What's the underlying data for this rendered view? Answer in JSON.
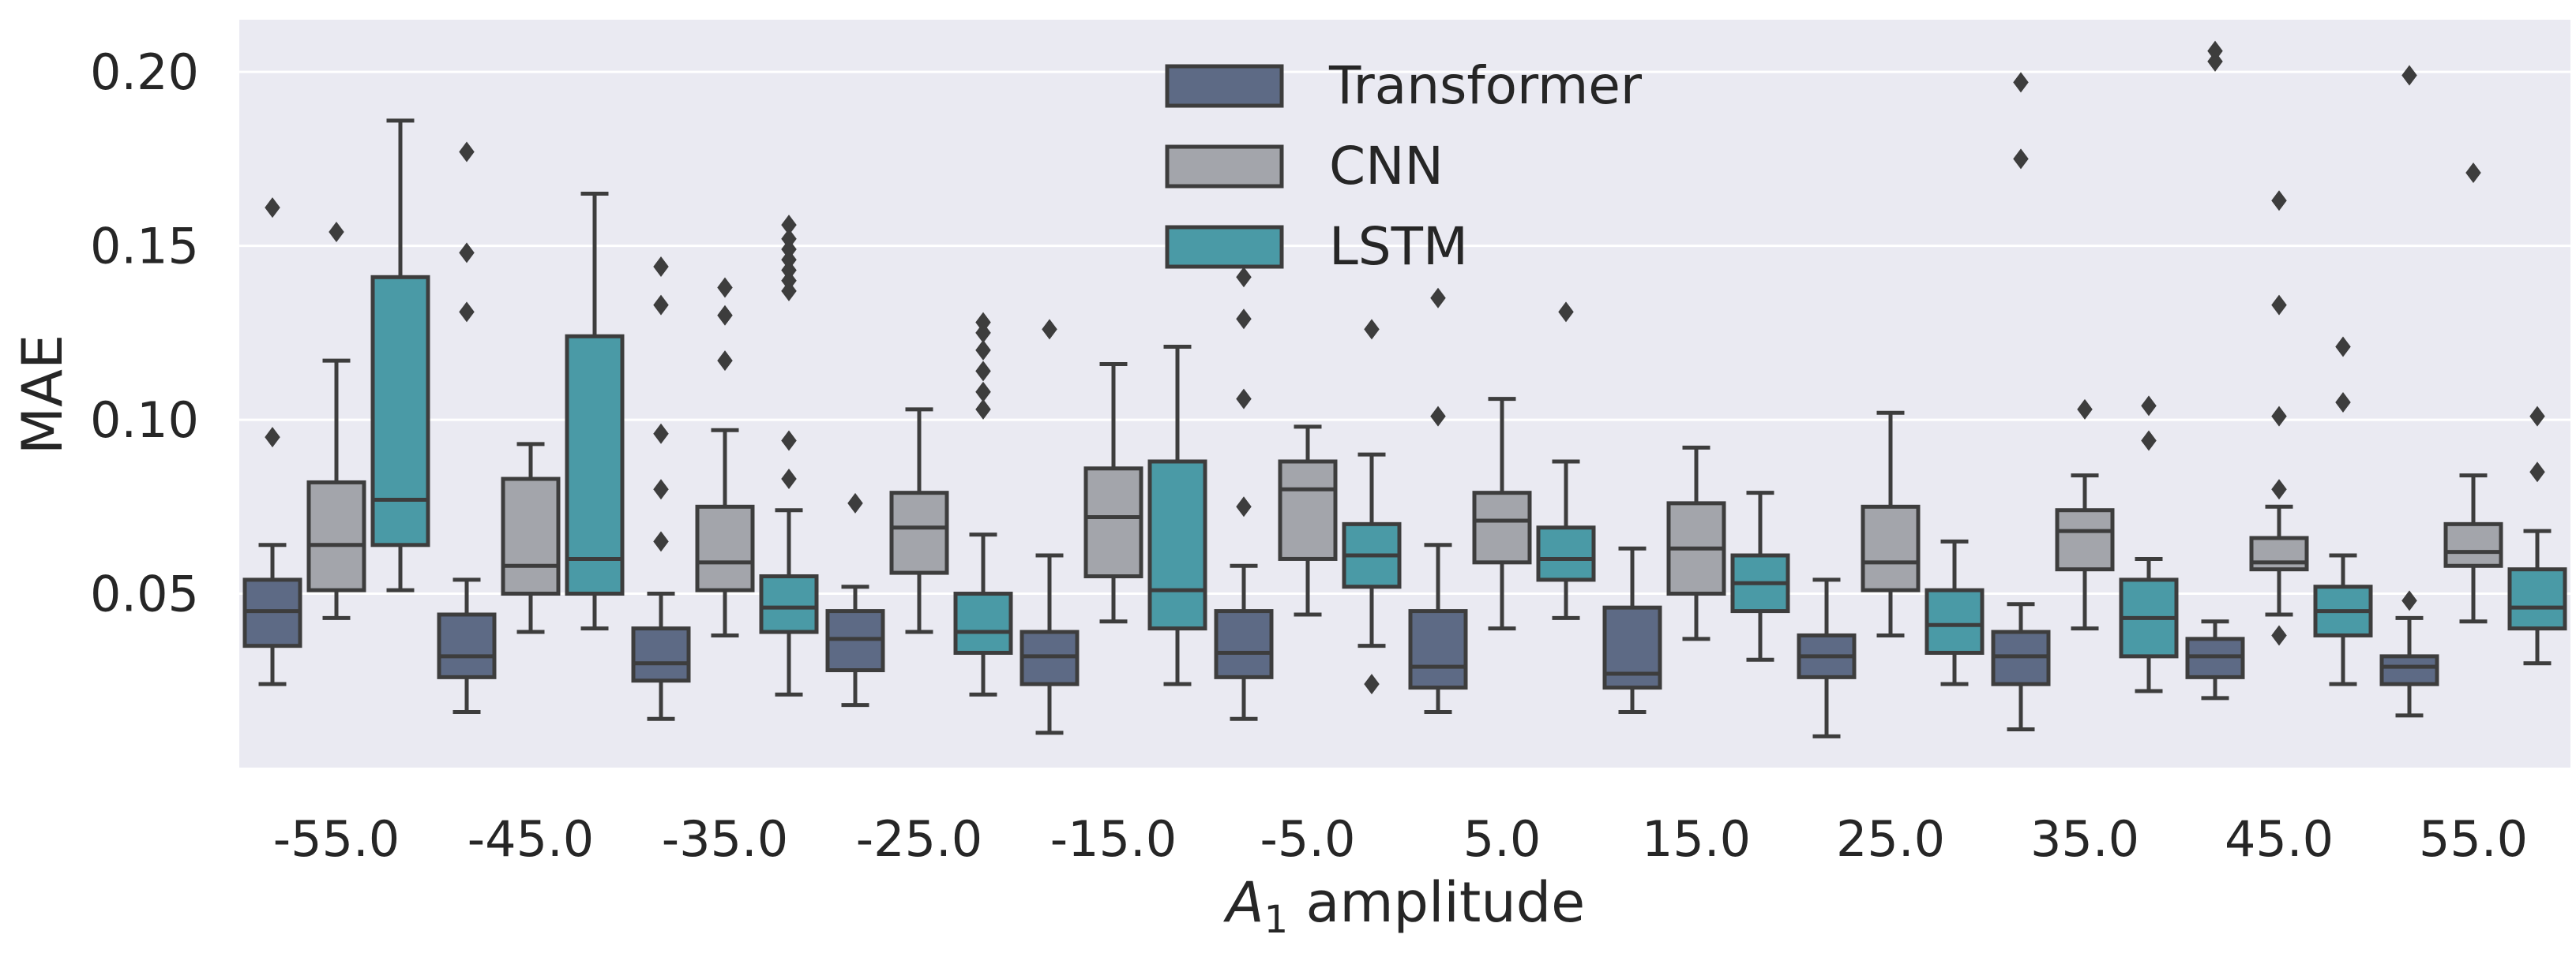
{
  "chart_data": {
    "type": "boxplot",
    "title": "",
    "xlabel": "$A_1$ amplitude",
    "xlabel_parts": {
      "symbol": "A",
      "subscript": "1",
      "rest": " amplitude"
    },
    "ylabel": "MAE",
    "ylim": [
      0.0,
      0.215
    ],
    "yticks": [
      0.05,
      0.1,
      0.15,
      0.2
    ],
    "ytick_labels": [
      "0.05",
      "0.10",
      "0.15",
      "0.20"
    ],
    "grid": true,
    "legend_position": "top-center",
    "categories": [
      "-55.0",
      "-45.0",
      "-35.0",
      "-25.0",
      "-15.0",
      "-5.0",
      "5.0",
      "15.0",
      "25.0",
      "35.0",
      "45.0",
      "55.0"
    ],
    "series": [
      {
        "name": "Transformer",
        "color": "#5d6a85",
        "boxes": [
          {
            "whislo": 0.024,
            "q1": 0.035,
            "med": 0.045,
            "q3": 0.054,
            "whishi": 0.064,
            "fliers": [
              0.095,
              0.161
            ]
          },
          {
            "whislo": 0.016,
            "q1": 0.026,
            "med": 0.032,
            "q3": 0.044,
            "whishi": 0.054,
            "fliers": [
              0.131,
              0.148,
              0.177
            ]
          },
          {
            "whislo": 0.014,
            "q1": 0.025,
            "med": 0.03,
            "q3": 0.04,
            "whishi": 0.05,
            "fliers": [
              0.065,
              0.08,
              0.096,
              0.133,
              0.144
            ]
          },
          {
            "whislo": 0.018,
            "q1": 0.028,
            "med": 0.037,
            "q3": 0.045,
            "whishi": 0.052,
            "fliers": [
              0.076
            ]
          },
          {
            "whislo": 0.01,
            "q1": 0.024,
            "med": 0.032,
            "q3": 0.039,
            "whishi": 0.061,
            "fliers": [
              0.126
            ]
          },
          {
            "whislo": 0.014,
            "q1": 0.026,
            "med": 0.033,
            "q3": 0.045,
            "whishi": 0.058,
            "fliers": [
              0.075,
              0.106,
              0.129,
              0.141
            ]
          },
          {
            "whislo": 0.016,
            "q1": 0.023,
            "med": 0.029,
            "q3": 0.045,
            "whishi": 0.064,
            "fliers": [
              0.101,
              0.135
            ]
          },
          {
            "whislo": 0.016,
            "q1": 0.023,
            "med": 0.027,
            "q3": 0.046,
            "whishi": 0.063,
            "fliers": []
          },
          {
            "whislo": 0.009,
            "q1": 0.026,
            "med": 0.032,
            "q3": 0.038,
            "whishi": 0.054,
            "fliers": []
          },
          {
            "whislo": 0.011,
            "q1": 0.024,
            "med": 0.032,
            "q3": 0.039,
            "whishi": 0.047,
            "fliers": [
              0.175,
              0.197
            ]
          },
          {
            "whislo": 0.02,
            "q1": 0.026,
            "med": 0.032,
            "q3": 0.037,
            "whishi": 0.042,
            "fliers": [
              0.203,
              0.206
            ]
          },
          {
            "whislo": 0.015,
            "q1": 0.024,
            "med": 0.029,
            "q3": 0.032,
            "whishi": 0.043,
            "fliers": [
              0.048,
              0.199
            ]
          }
        ]
      },
      {
        "name": "CNN",
        "color": "#a3a5ab",
        "boxes": [
          {
            "whislo": 0.043,
            "q1": 0.051,
            "med": 0.064,
            "q3": 0.082,
            "whishi": 0.117,
            "fliers": [
              0.154
            ]
          },
          {
            "whislo": 0.039,
            "q1": 0.05,
            "med": 0.058,
            "q3": 0.083,
            "whishi": 0.093,
            "fliers": []
          },
          {
            "whislo": 0.038,
            "q1": 0.051,
            "med": 0.059,
            "q3": 0.075,
            "whishi": 0.097,
            "fliers": [
              0.117,
              0.13,
              0.138
            ]
          },
          {
            "whislo": 0.039,
            "q1": 0.056,
            "med": 0.069,
            "q3": 0.079,
            "whishi": 0.103,
            "fliers": []
          },
          {
            "whislo": 0.042,
            "q1": 0.055,
            "med": 0.072,
            "q3": 0.086,
            "whishi": 0.116,
            "fliers": []
          },
          {
            "whislo": 0.044,
            "q1": 0.06,
            "med": 0.08,
            "q3": 0.088,
            "whishi": 0.098,
            "fliers": []
          },
          {
            "whislo": 0.04,
            "q1": 0.059,
            "med": 0.071,
            "q3": 0.079,
            "whishi": 0.106,
            "fliers": []
          },
          {
            "whislo": 0.037,
            "q1": 0.05,
            "med": 0.063,
            "q3": 0.076,
            "whishi": 0.092,
            "fliers": []
          },
          {
            "whislo": 0.038,
            "q1": 0.051,
            "med": 0.059,
            "q3": 0.075,
            "whishi": 0.102,
            "fliers": []
          },
          {
            "whislo": 0.04,
            "q1": 0.057,
            "med": 0.068,
            "q3": 0.074,
            "whishi": 0.084,
            "fliers": [
              0.103
            ]
          },
          {
            "whislo": 0.044,
            "q1": 0.057,
            "med": 0.059,
            "q3": 0.066,
            "whishi": 0.075,
            "fliers": [
              0.038,
              0.08,
              0.101,
              0.133,
              0.163
            ]
          },
          {
            "whislo": 0.042,
            "q1": 0.058,
            "med": 0.062,
            "q3": 0.07,
            "whishi": 0.084,
            "fliers": [
              0.171
            ]
          }
        ]
      },
      {
        "name": "LSTM",
        "color": "#4a9aa6",
        "boxes": [
          {
            "whislo": 0.051,
            "q1": 0.064,
            "med": 0.077,
            "q3": 0.141,
            "whishi": 0.186,
            "fliers": []
          },
          {
            "whislo": 0.04,
            "q1": 0.05,
            "med": 0.06,
            "q3": 0.124,
            "whishi": 0.165,
            "fliers": []
          },
          {
            "whislo": 0.021,
            "q1": 0.039,
            "med": 0.046,
            "q3": 0.055,
            "whishi": 0.074,
            "fliers": [
              0.083,
              0.094,
              0.137,
              0.14,
              0.143,
              0.146,
              0.149,
              0.152,
              0.156
            ]
          },
          {
            "whislo": 0.021,
            "q1": 0.033,
            "med": 0.039,
            "q3": 0.05,
            "whishi": 0.067,
            "fliers": [
              0.103,
              0.108,
              0.114,
              0.12,
              0.125,
              0.128
            ]
          },
          {
            "whislo": 0.024,
            "q1": 0.04,
            "med": 0.051,
            "q3": 0.088,
            "whishi": 0.121,
            "fliers": []
          },
          {
            "whislo": 0.035,
            "q1": 0.052,
            "med": 0.061,
            "q3": 0.07,
            "whishi": 0.09,
            "fliers": [
              0.024,
              0.126
            ]
          },
          {
            "whislo": 0.043,
            "q1": 0.054,
            "med": 0.06,
            "q3": 0.069,
            "whishi": 0.088,
            "fliers": [
              0.131
            ]
          },
          {
            "whislo": 0.031,
            "q1": 0.045,
            "med": 0.053,
            "q3": 0.061,
            "whishi": 0.079,
            "fliers": []
          },
          {
            "whislo": 0.024,
            "q1": 0.033,
            "med": 0.041,
            "q3": 0.051,
            "whishi": 0.065,
            "fliers": []
          },
          {
            "whislo": 0.022,
            "q1": 0.032,
            "med": 0.043,
            "q3": 0.054,
            "whishi": 0.06,
            "fliers": [
              0.094,
              0.104
            ]
          },
          {
            "whislo": 0.024,
            "q1": 0.038,
            "med": 0.045,
            "q3": 0.052,
            "whishi": 0.061,
            "fliers": [
              0.105,
              0.121
            ]
          },
          {
            "whislo": 0.03,
            "q1": 0.04,
            "med": 0.046,
            "q3": 0.057,
            "whishi": 0.068,
            "fliers": [
              0.085,
              0.101
            ]
          }
        ]
      }
    ]
  }
}
